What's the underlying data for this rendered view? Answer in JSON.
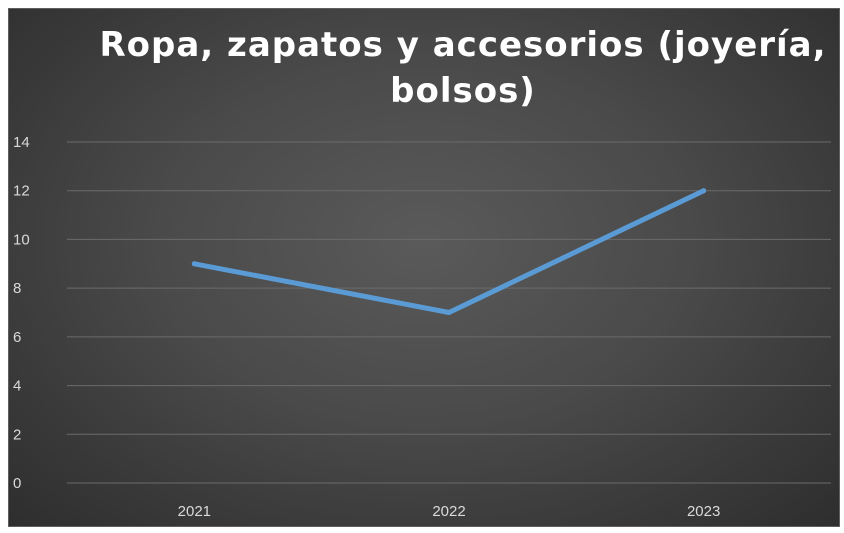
{
  "chart_data": {
    "type": "line",
    "title_lines": [
      "Ropa, zapatos y accesorios (joyería,",
      "bolsos)"
    ],
    "categories": [
      "2021",
      "2022",
      "2023"
    ],
    "series": [
      {
        "values": [
          9,
          7,
          12
        ]
      }
    ],
    "ylim": [
      0,
      14
    ],
    "y_ticks": [
      "0",
      "2",
      "4",
      "6",
      "8",
      "10",
      "12",
      "14"
    ],
    "grid": true,
    "legend": "none",
    "colors": {
      "line": "#5b9bd5",
      "grid": "#6b6b6b",
      "tick_text": "#d9d9d9",
      "title": "#ffffff"
    }
  }
}
